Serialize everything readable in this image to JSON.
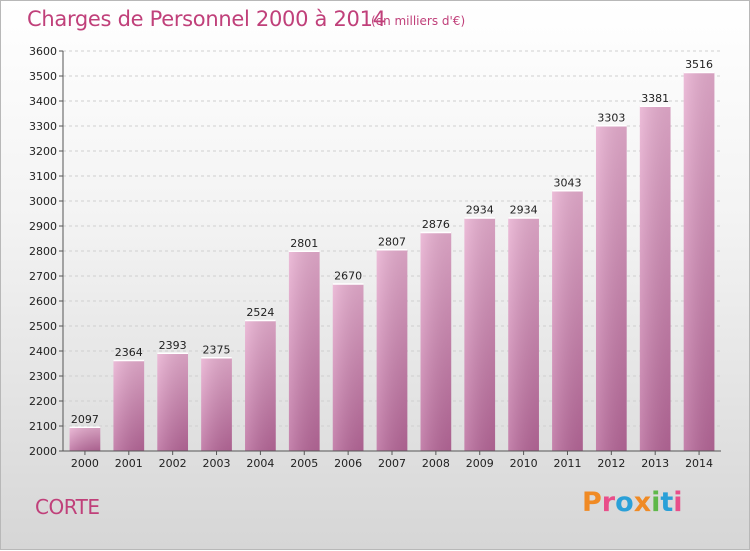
{
  "header": {
    "title": "Charges de Personnel 2000 à 2014",
    "unit": "(en milliers d'€)"
  },
  "footer": {
    "commune": "CORTE",
    "logo_text": "Proxiti",
    "logo_colors": [
      "#f08a24",
      "#e94e8a",
      "#2aa0d8",
      "#f08a24",
      "#5fb84a",
      "#2aa0d8",
      "#e94e8a"
    ]
  },
  "chart_data": {
    "type": "bar",
    "title": "Charges de Personnel 2000 à 2014",
    "subtitle": "(en milliers d'€)",
    "categories": [
      "2000",
      "2001",
      "2002",
      "2003",
      "2004",
      "2005",
      "2006",
      "2007",
      "2008",
      "2009",
      "2010",
      "2011",
      "2012",
      "2013",
      "2014"
    ],
    "values": [
      2097,
      2364,
      2393,
      2375,
      2524,
      2801,
      2670,
      2807,
      2876,
      2934,
      2934,
      3043,
      3303,
      3381,
      3516
    ],
    "ylim": [
      2000,
      3600
    ],
    "yticks": [
      2000,
      2100,
      2200,
      2300,
      2400,
      2500,
      2600,
      2700,
      2800,
      2900,
      3000,
      3100,
      3200,
      3300,
      3400,
      3500,
      3600
    ],
    "grid": true,
    "bar_color": "#d98fb8"
  }
}
